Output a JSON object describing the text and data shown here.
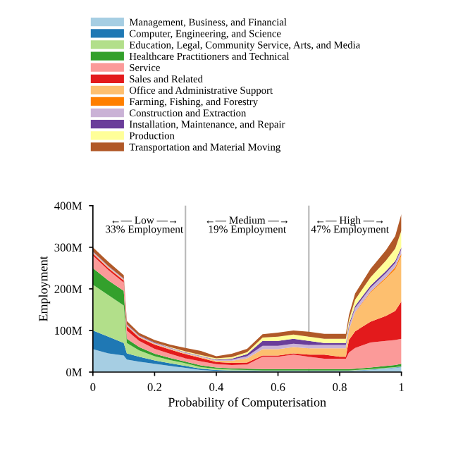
{
  "chart_data": {
    "type": "area",
    "stacked": true,
    "xlabel": "Probability of Computerisation",
    "ylabel": "Employment",
    "x": [
      0,
      0.05,
      0.1,
      0.11,
      0.15,
      0.2,
      0.25,
      0.3,
      0.35,
      0.4,
      0.45,
      0.5,
      0.55,
      0.6,
      0.65,
      0.7,
      0.75,
      0.8,
      0.82,
      0.83,
      0.85,
      0.9,
      0.95,
      0.98,
      1
    ],
    "series": [
      {
        "name": "Management, Business, and Financial",
        "color": "#a6cee3",
        "values": [
          55,
          45,
          40,
          30,
          25,
          20,
          15,
          10,
          5,
          3,
          2,
          2,
          2,
          2,
          2,
          2,
          2,
          2,
          2,
          2,
          3,
          5,
          8,
          10,
          12
        ]
      },
      {
        "name": "Computer, Engineering, and Science",
        "color": "#1f78b4",
        "values": [
          45,
          40,
          30,
          15,
          12,
          8,
          6,
          5,
          3,
          2,
          2,
          2,
          1,
          1,
          1,
          1,
          1,
          1,
          1,
          1,
          1,
          1,
          1,
          1,
          1
        ]
      },
      {
        "name": "Education, Legal, Community Service, Arts, and Media",
        "color": "#b2df8a",
        "values": [
          110,
          100,
          90,
          25,
          15,
          10,
          8,
          6,
          4,
          3,
          2,
          1,
          1,
          1,
          1,
          1,
          1,
          1,
          1,
          1,
          1,
          1,
          1,
          1,
          1
        ]
      },
      {
        "name": "Healthcare Practitioners and Technical",
        "color": "#33a02c",
        "values": [
          40,
          35,
          35,
          10,
          8,
          6,
          5,
          4,
          4,
          3,
          3,
          3,
          3,
          3,
          3,
          3,
          3,
          3,
          3,
          3,
          3,
          4,
          5,
          5,
          6
        ]
      },
      {
        "name": "Service",
        "color": "#fb9a99",
        "values": [
          30,
          25,
          20,
          20,
          15,
          12,
          10,
          8,
          10,
          8,
          8,
          10,
          30,
          30,
          35,
          30,
          25,
          25,
          25,
          40,
          50,
          60,
          60,
          60,
          60
        ]
      },
      {
        "name": "Sales and Related",
        "color": "#e31a1c",
        "values": [
          5,
          5,
          5,
          10,
          8,
          10,
          10,
          10,
          8,
          5,
          5,
          5,
          3,
          3,
          3,
          5,
          10,
          5,
          5,
          30,
          40,
          50,
          60,
          70,
          90
        ]
      },
      {
        "name": "Office and Administrative Support",
        "color": "#fdbf6f",
        "values": [
          2,
          2,
          2,
          2,
          2,
          2,
          2,
          2,
          2,
          3,
          5,
          10,
          15,
          15,
          15,
          15,
          15,
          20,
          20,
          25,
          45,
          70,
          90,
          100,
          110
        ]
      },
      {
        "name": "Farming, Fishing, and Forestry",
        "color": "#ff7f00",
        "values": [
          0,
          0,
          0,
          0,
          0,
          0,
          0,
          0,
          0,
          0,
          0,
          0,
          0,
          0,
          0,
          0,
          0,
          0,
          0,
          0,
          1,
          2,
          3,
          5,
          5
        ]
      },
      {
        "name": "Construction and Extraction",
        "color": "#cab2d6",
        "values": [
          2,
          2,
          2,
          2,
          2,
          2,
          2,
          2,
          2,
          2,
          3,
          5,
          8,
          8,
          8,
          8,
          8,
          8,
          8,
          8,
          10,
          10,
          10,
          10,
          10
        ]
      },
      {
        "name": "Installation, Maintenance, and Repair",
        "color": "#6a3d9a",
        "values": [
          1,
          1,
          1,
          1,
          1,
          1,
          1,
          1,
          1,
          1,
          2,
          5,
          12,
          12,
          12,
          10,
          5,
          5,
          5,
          5,
          5,
          5,
          5,
          5,
          5
        ]
      },
      {
        "name": "Production",
        "color": "#ffff99",
        "values": [
          0,
          0,
          0,
          0,
          0,
          0,
          1,
          2,
          2,
          3,
          4,
          5,
          8,
          10,
          10,
          10,
          10,
          10,
          10,
          10,
          15,
          20,
          25,
          30,
          40
        ]
      },
      {
        "name": "Transportation and Material Moving",
        "color": "#b15928",
        "values": [
          10,
          10,
          8,
          8,
          6,
          6,
          6,
          8,
          10,
          5,
          8,
          8,
          8,
          10,
          10,
          12,
          12,
          12,
          12,
          12,
          15,
          20,
          25,
          30,
          40
        ]
      }
    ],
    "xlim": [
      0,
      1
    ],
    "ylim": [
      0,
      400
    ],
    "xticks": [
      0,
      0.2,
      0.4,
      0.6,
      0.8,
      1
    ],
    "yticks": [
      {
        "value": 0,
        "label": "0M"
      },
      {
        "value": 100,
        "label": "100M"
      },
      {
        "value": 200,
        "label": "200M"
      },
      {
        "value": 300,
        "label": "300M"
      },
      {
        "value": 400,
        "label": "400M"
      }
    ],
    "ref_lines": [
      {
        "axis": "x",
        "value": 0.3,
        "color": "#bbbbbb"
      },
      {
        "axis": "x",
        "value": 0.7,
        "color": "#bbbbbb"
      }
    ],
    "annotations": [
      "←— Low —→\n33% Employment",
      "←— Medium —→\n19% Employment",
      "←— High —→\n47% Employment"
    ],
    "legend": "top",
    "grid": false
  }
}
